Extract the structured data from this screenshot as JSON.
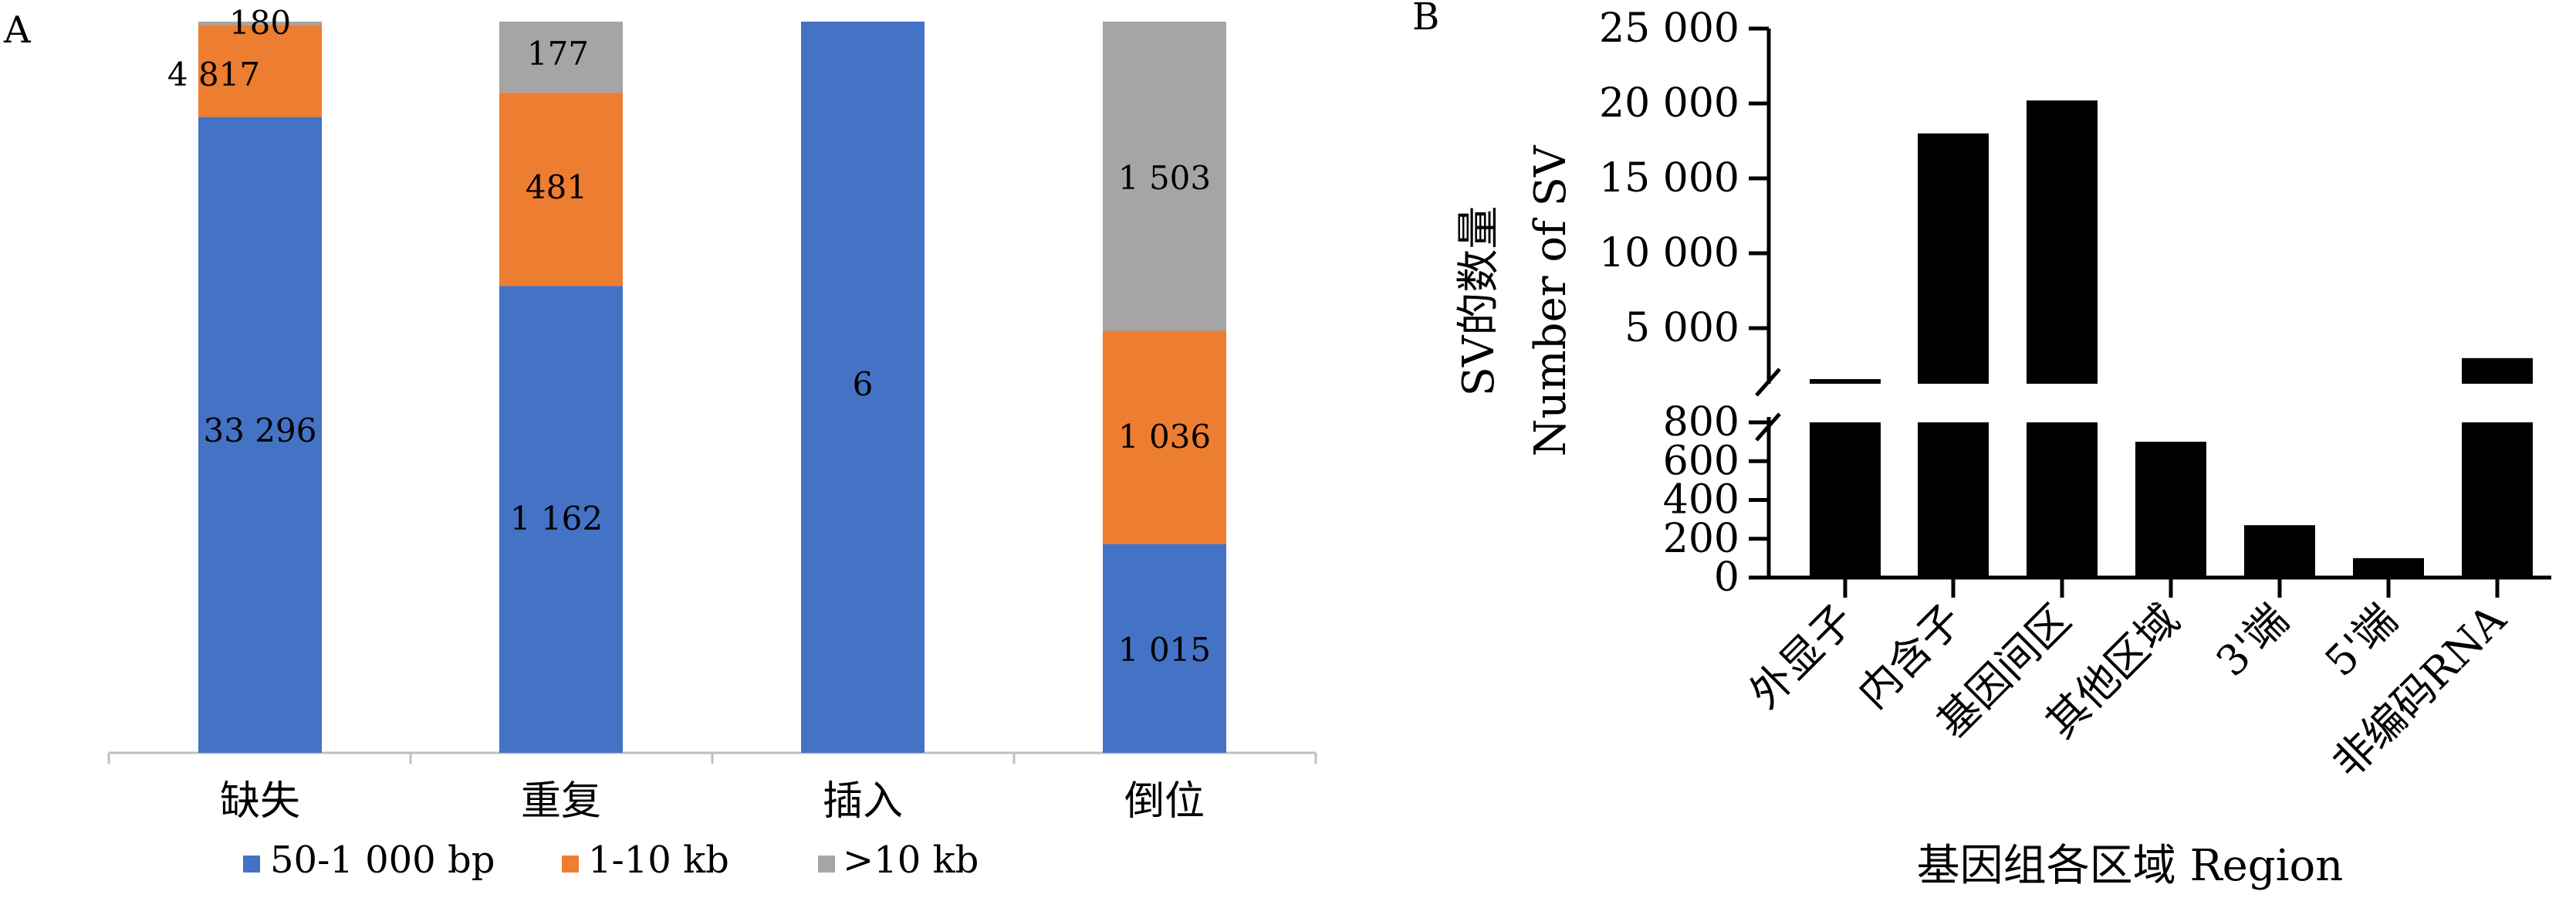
{
  "panels": {
    "a_letter": "A",
    "b_letter": "B"
  },
  "chart_data": [
    {
      "type": "bar",
      "stacked": true,
      "normalized": true,
      "panel": "A",
      "categories": [
        "缺失",
        "重复",
        "插入",
        "倒位"
      ],
      "series": [
        {
          "name": "50-1 000 bp",
          "color": "#4472c4",
          "values": [
            33296,
            1162,
            6,
            1015
          ],
          "labels": [
            "33 296",
            "1 162",
            "6",
            "1 015"
          ]
        },
        {
          "name": "1-10 kb",
          "color": "#ed7d31",
          "values": [
            4817,
            481,
            0,
            1036
          ],
          "labels": [
            "4 817",
            "481",
            "",
            "1 036"
          ]
        },
        {
          "name": ">10 kb",
          "color": "#a5a5a5",
          "values": [
            180,
            177,
            0,
            1503
          ],
          "labels": [
            "180",
            "177",
            "",
            "1 503"
          ]
        }
      ],
      "legend_position": "bottom",
      "grid": false
    },
    {
      "type": "bar",
      "panel": "B",
      "categories": [
        "外显子",
        "内含子",
        "基因间区",
        "其他区域",
        "3'端",
        "5'端",
        "非编码RNA"
      ],
      "values": [
        1500,
        18000,
        20200,
        700,
        270,
        100,
        3000
      ],
      "ylabel_lines": [
        "SV的数量",
        "Number of SV"
      ],
      "xlabel": "基因组各区域 Region",
      "broken_axis": true,
      "lower_range": [
        0,
        800
      ],
      "upper_range": [
        1000,
        25000
      ],
      "lower_ticks": [
        "0",
        "200",
        "400",
        "600",
        "800"
      ],
      "lower_tick_values": [
        0,
        200,
        400,
        600,
        800
      ],
      "upper_ticks": [
        "5 000",
        "10 000",
        "15 000",
        "20 000",
        "25 000"
      ],
      "upper_tick_values": [
        5000,
        10000,
        15000,
        20000,
        25000
      ],
      "bar_color": "#000000",
      "grid": false
    }
  ]
}
